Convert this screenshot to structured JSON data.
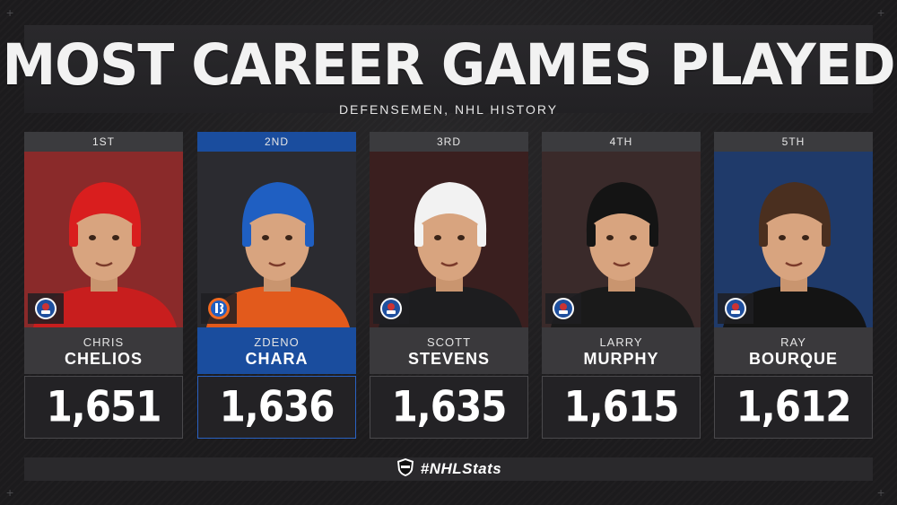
{
  "header": {
    "title": "MOST CAREER GAMES PLAYED",
    "subtitle": "DEFENSEMEN, NHL HISTORY"
  },
  "players": [
    {
      "rank": "1ST",
      "first_name": "CHRIS",
      "last_name": "CHELIOS",
      "games": "1,651",
      "badge": "hall-of-fame-icon",
      "helmet_color": "#d91e1e",
      "bg_color": "#8a2a2a",
      "jersey_color": "#c81e1e"
    },
    {
      "rank": "2ND",
      "first_name": "ZDENO",
      "last_name": "CHARA",
      "games": "1,636",
      "badge": "islanders-logo-icon",
      "helmet_color": "#1f5fc2",
      "bg_color": "#2b2b30",
      "jersey_color": "#e25a1c"
    },
    {
      "rank": "3RD",
      "first_name": "SCOTT",
      "last_name": "STEVENS",
      "games": "1,635",
      "badge": "hall-of-fame-icon",
      "helmet_color": "#f2f2f2",
      "bg_color": "#3a1f1f",
      "jersey_color": "#1d1d1f"
    },
    {
      "rank": "4TH",
      "first_name": "LARRY",
      "last_name": "MURPHY",
      "games": "1,615",
      "badge": "hall-of-fame-icon",
      "helmet_color": "#141414",
      "bg_color": "#3a2a2a",
      "jersey_color": "#1a1a1a"
    },
    {
      "rank": "5TH",
      "first_name": "RAY",
      "last_name": "BOURQUE",
      "games": "1,612",
      "badge": "hall-of-fame-icon",
      "helmet_color": "#4a2f1f",
      "bg_color": "#1f3a6a",
      "jersey_color": "#141414"
    }
  ],
  "footer": {
    "hashtag": "#NHLStats",
    "logo": "nhl-shield-icon"
  },
  "colors": {
    "highlight": "#1a4d9e",
    "background": "#1c1b1d",
    "panel": "#3a393c"
  }
}
